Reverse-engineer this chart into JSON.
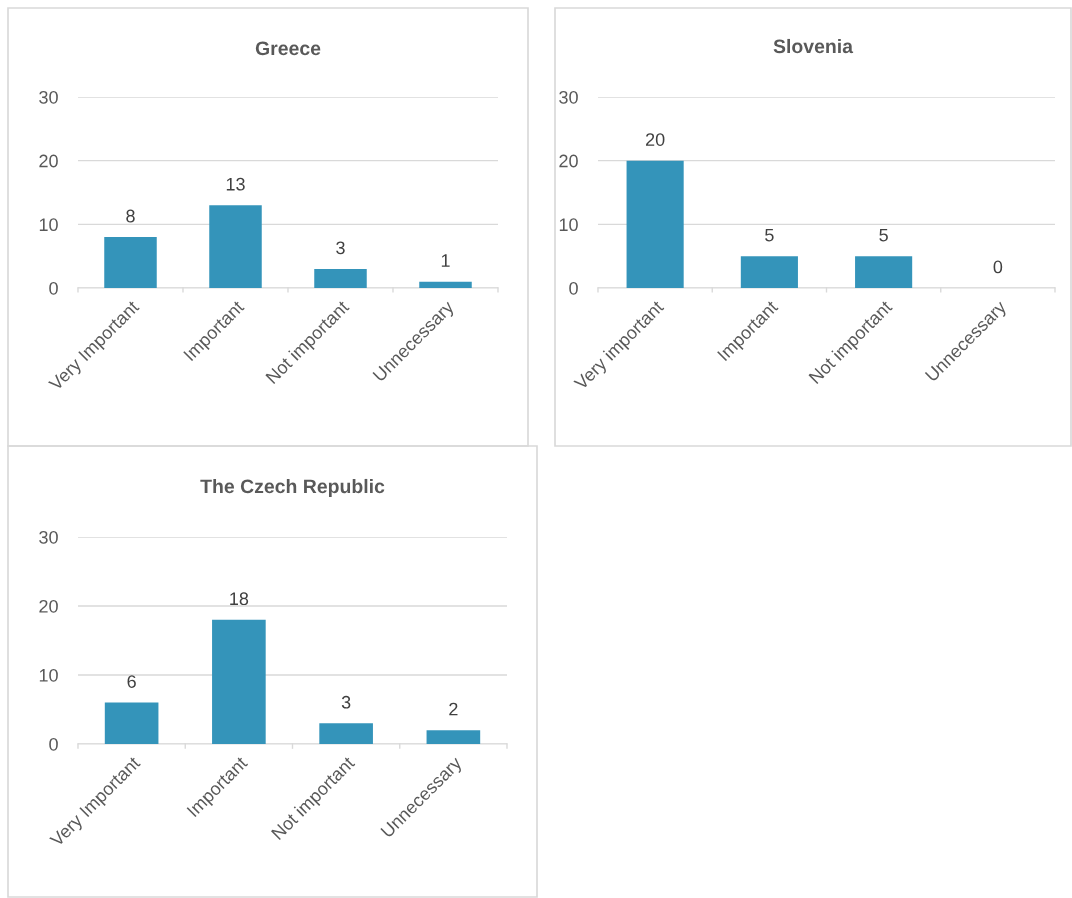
{
  "chart_data": [
    {
      "type": "bar",
      "title": "Greece",
      "categories": [
        "Very Important",
        "Important",
        "Not important",
        "Unnecessary"
      ],
      "values": [
        8,
        13,
        3,
        1
      ],
      "color": "#3494ba",
      "ylim": [
        0,
        30
      ],
      "yticks": [
        0,
        10,
        20,
        30
      ],
      "grid": "y",
      "data_labels": true
    },
    {
      "type": "bar",
      "title": "Slovenia",
      "categories": [
        "Very important",
        "Important",
        "Not important",
        "Unnecessary"
      ],
      "values": [
        20,
        5,
        5,
        0
      ],
      "color": "#3494ba",
      "ylim": [
        0,
        30
      ],
      "yticks": [
        0,
        10,
        20,
        30
      ],
      "grid": "y",
      "data_labels": true
    },
    {
      "type": "bar",
      "title": "The Czech Republic",
      "categories": [
        "Very Important",
        "Important",
        "Not important",
        "Unnecessary"
      ],
      "values": [
        6,
        18,
        3,
        2
      ],
      "color": "#3494ba",
      "ylim": [
        0,
        30
      ],
      "yticks": [
        0,
        10,
        20,
        30
      ],
      "grid": "y",
      "data_labels": true
    }
  ]
}
